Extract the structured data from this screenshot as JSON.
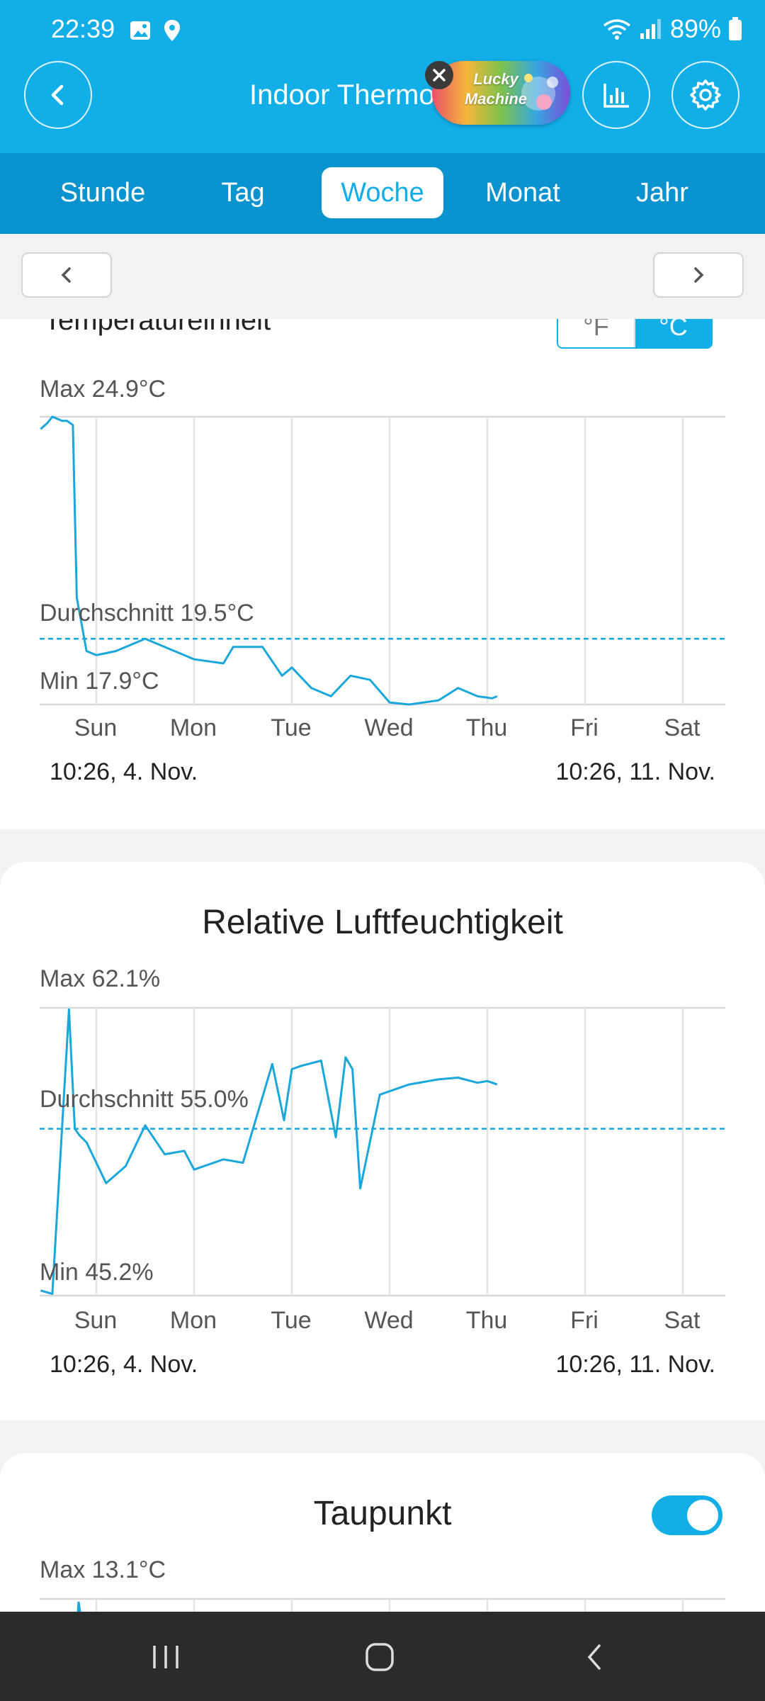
{
  "status_bar": {
    "time": "22:39",
    "battery": "89%"
  },
  "app_bar": {
    "title": "Indoor Thermo",
    "ad_text": "Lucky Machine"
  },
  "tabs": [
    "Stunde",
    "Tag",
    "Woche",
    "Monat",
    "Jahr"
  ],
  "active_tab": "Woche",
  "temperature_card": {
    "unit_label": "Temperatureinheit",
    "unit_options": [
      "°F",
      "°C"
    ],
    "selected_unit": "°C",
    "max_label": "Max 24.9°C",
    "avg_label": "Durchschnitt 19.5°C",
    "min_label": "Min 17.9°C",
    "start_label": "10:26,  4. Nov.",
    "end_label": "10:26,  11. Nov."
  },
  "humidity_card": {
    "title": "Relative Luftfeuchtigkeit",
    "max_label": "Max 62.1%",
    "avg_label": "Durchschnitt 55.0%",
    "min_label": "Min 45.2%",
    "start_label": "10:26,  4. Nov.",
    "end_label": "10:26,  11. Nov."
  },
  "dewpoint_card": {
    "title": "Taupunkt",
    "toggle_on": true,
    "max_label": "Max 13.1°C"
  },
  "days": [
    "Sun",
    "Mon",
    "Tue",
    "Wed",
    "Thu",
    "Fri",
    "Sat"
  ],
  "colors": {
    "primary": "#12aee8",
    "line": "#1aa7dc",
    "tab_bar": "#0a93cf"
  },
  "chart_data": [
    {
      "type": "line",
      "title": "",
      "x": [
        -0.57,
        -0.5,
        -0.45,
        -0.35,
        -0.3,
        -0.24,
        -0.2,
        -0.1,
        0.0,
        0.2,
        0.5,
        0.9,
        1.0,
        1.3,
        1.4,
        1.7,
        1.9,
        2.0,
        2.2,
        2.4,
        2.6,
        2.8,
        3.0,
        3.2,
        3.5,
        3.7,
        3.9,
        4.05,
        4.1
      ],
      "series": [
        {
          "values": [
            24.6,
            24.75,
            24.9,
            24.8,
            24.8,
            24.7,
            20.5,
            19.2,
            19.1,
            19.2,
            19.5,
            19.1,
            19.0,
            18.9,
            19.3,
            19.3,
            18.6,
            18.8,
            18.3,
            18.1,
            18.6,
            18.5,
            17.95,
            17.9,
            18.0,
            18.3,
            18.1,
            18.05,
            18.1
          ]
        }
      ],
      "y_max": 24.9,
      "y_min": 17.9,
      "y_avg": 19.5,
      "xlabel": "",
      "ylabel": ""
    },
    {
      "type": "line",
      "title": "",
      "x": [
        -0.57,
        -0.45,
        -0.28,
        -0.22,
        -0.17,
        -0.1,
        0.1,
        0.3,
        0.5,
        0.7,
        0.9,
        1.0,
        1.3,
        1.5,
        1.8,
        1.92,
        2.0,
        2.1,
        2.3,
        2.45,
        2.55,
        2.62,
        2.7,
        2.9,
        3.0,
        3.2,
        3.5,
        3.7,
        3.9,
        4.0,
        4.1
      ],
      "series": [
        {
          "values": [
            45.5,
            45.3,
            62.0,
            55.0,
            54.6,
            54.2,
            51.8,
            52.8,
            55.2,
            53.5,
            53.7,
            52.6,
            53.2,
            53.0,
            58.8,
            55.5,
            58.5,
            58.7,
            59.0,
            54.5,
            59.2,
            58.5,
            51.5,
            57.0,
            57.2,
            57.6,
            57.9,
            58.0,
            57.7,
            57.8,
            57.6
          ]
        }
      ],
      "y_max": 62.1,
      "y_min": 45.2,
      "y_avg": 55.0,
      "xlabel": "",
      "ylabel": ""
    }
  ]
}
